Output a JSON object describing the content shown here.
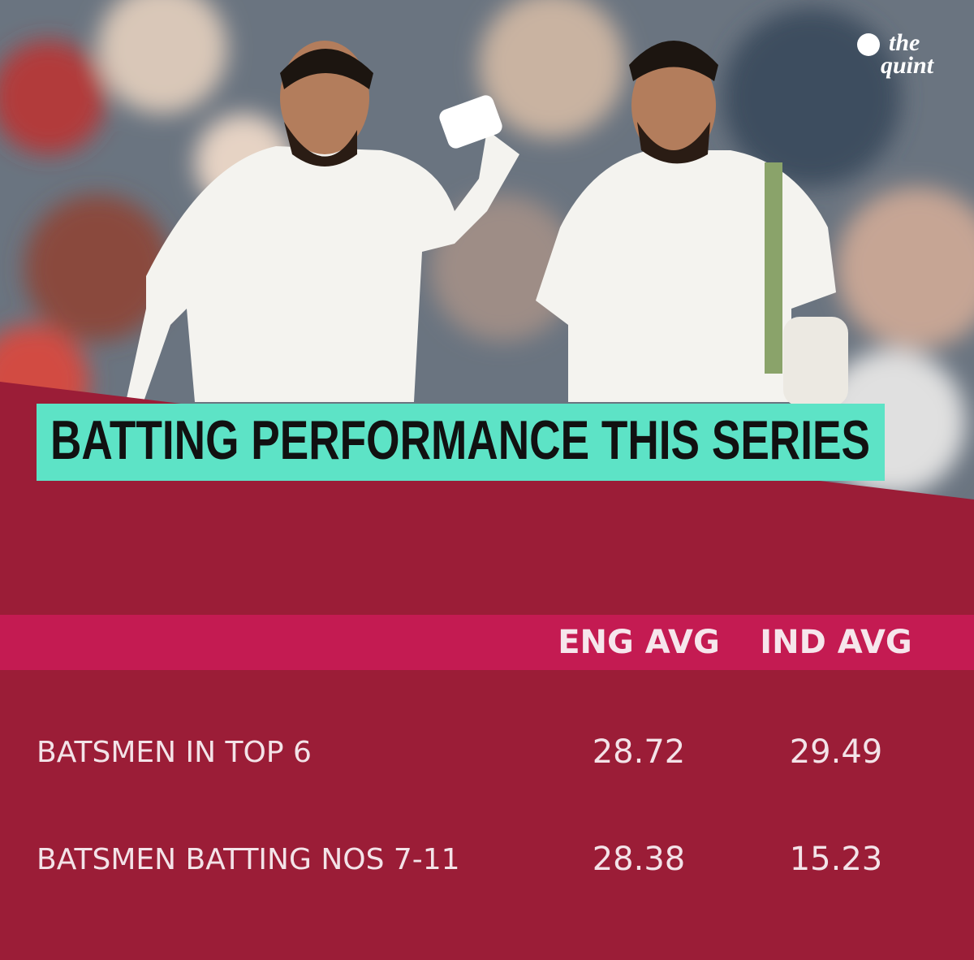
{
  "logo": {
    "line1": "the",
    "line2": "quint"
  },
  "title": "BATTING PERFORMANCE THIS SERIES",
  "table": {
    "columns": [
      "ENG AVG",
      "IND AVG"
    ],
    "rows": [
      [
        "BATSMEN IN TOP 6",
        28.72,
        29.49
      ],
      [
        "BATSMEN BATTING NOS 7-11",
        28.38,
        15.23
      ]
    ]
  }
}
